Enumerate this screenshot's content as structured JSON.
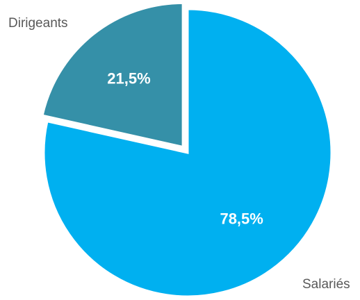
{
  "chart_data": {
    "type": "pie",
    "categories": [
      "Salariés",
      "Dirigeants"
    ],
    "values": [
      78.5,
      21.5
    ],
    "value_labels": [
      "78,5%",
      "21,5%"
    ],
    "colors": [
      "#00b0f0",
      "#3590a8"
    ]
  }
}
